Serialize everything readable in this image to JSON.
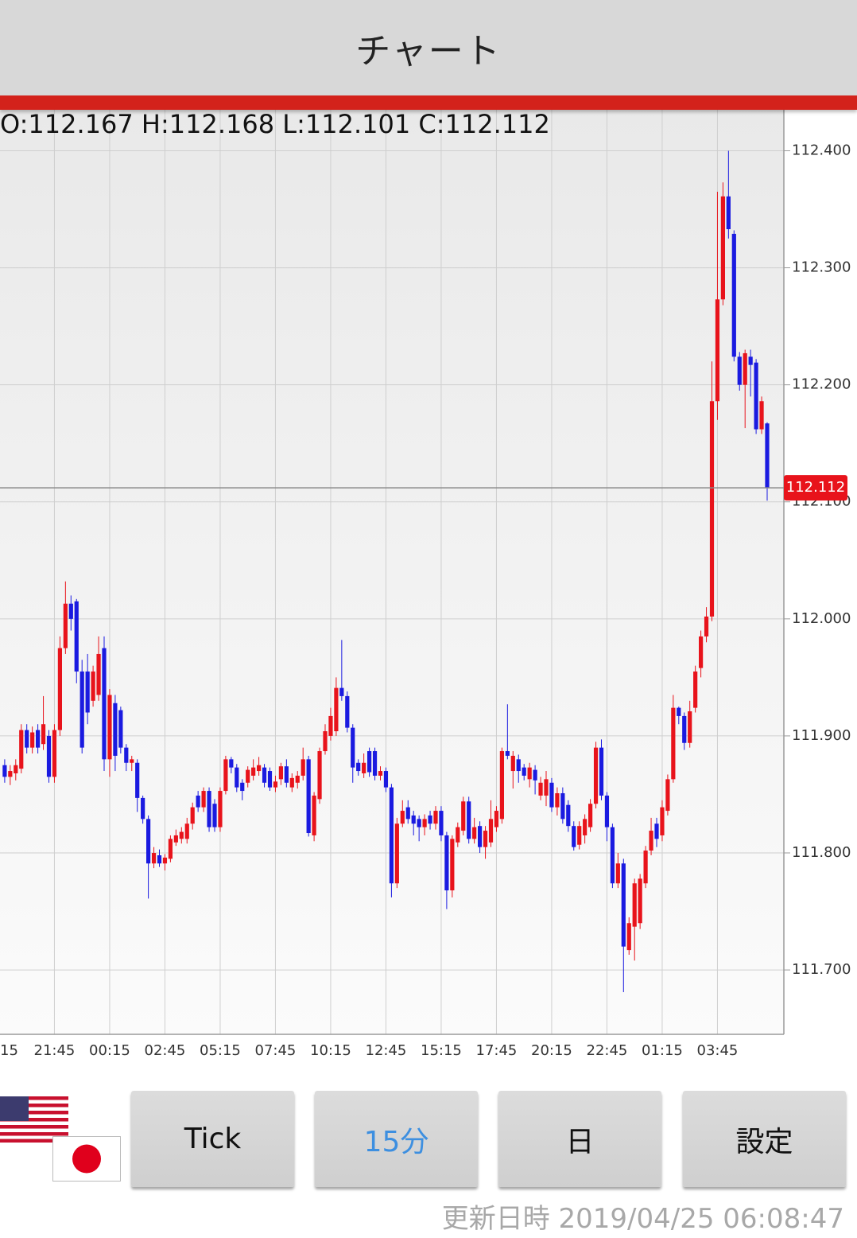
{
  "header": {
    "title": "チャート"
  },
  "chart_data": {
    "type": "candlestick",
    "ohlc_label": "O:112.167 H:112.168 L:112.101 C:112.112",
    "up_color": "#e8131b",
    "down_color": "#1a1ae0",
    "ylim": [
      111.645,
      112.435
    ],
    "yticks": [
      {
        "value": 111.7,
        "label": "111.700"
      },
      {
        "value": 111.8,
        "label": "111.800"
      },
      {
        "value": 111.9,
        "label": "111.900"
      },
      {
        "value": 112.0,
        "label": "112.000"
      },
      {
        "value": 112.1,
        "label": "112.100"
      },
      {
        "value": 112.2,
        "label": "112.200"
      },
      {
        "value": 112.3,
        "label": "112.300"
      },
      {
        "value": 112.4,
        "label": "112.400"
      }
    ],
    "grid": true,
    "categories": [
      "15",
      null,
      null,
      null,
      null,
      null,
      null,
      null,
      null,
      "21:45",
      null,
      null,
      null,
      null,
      null,
      null,
      null,
      null,
      null,
      "00:15",
      null,
      null,
      null,
      null,
      null,
      null,
      null,
      null,
      null,
      "02:45",
      null,
      null,
      null,
      null,
      null,
      null,
      null,
      null,
      null,
      "05:15",
      null,
      null,
      null,
      null,
      null,
      null,
      null,
      null,
      null,
      "07:45",
      null,
      null,
      null,
      null,
      null,
      null,
      null,
      null,
      null,
      "10:15",
      null,
      null,
      null,
      null,
      null,
      null,
      null,
      null,
      null,
      "12:45",
      null,
      null,
      null,
      null,
      null,
      null,
      null,
      null,
      null,
      "15:15",
      null,
      null,
      null,
      null,
      null,
      null,
      null,
      null,
      null,
      "17:45",
      null,
      null,
      null,
      null,
      null,
      null,
      null,
      null,
      null,
      "20:15",
      null,
      null,
      null,
      null,
      null,
      null,
      null,
      null,
      null,
      "22:45",
      null,
      null,
      null,
      null,
      null,
      null,
      null,
      null,
      null,
      "01:15",
      null,
      null,
      null,
      null,
      null,
      null,
      null,
      null,
      null,
      "03:45",
      null,
      null,
      null,
      null,
      null,
      null,
      null,
      null,
      null
    ],
    "open": [
      111.875,
      111.865,
      111.868,
      111.872,
      111.905,
      111.89,
      111.905,
      111.893,
      111.9,
      111.865,
      111.905,
      111.975,
      112.013,
      112.015,
      111.955,
      111.955,
      111.93,
      111.935,
      111.975,
      111.88,
      111.928,
      111.922,
      111.89,
      111.877,
      111.877,
      111.847,
      111.829,
      111.791,
      111.798,
      111.791,
      111.795,
      111.809,
      111.812,
      111.812,
      111.825,
      111.849,
      111.839,
      111.853,
      111.842,
      111.822,
      111.853,
      111.88,
      111.873,
      111.86,
      111.86,
      111.866,
      111.87,
      111.873,
      111.87,
      111.856,
      111.863,
      111.874,
      111.856,
      111.86,
      111.866,
      111.88,
      111.815,
      111.846,
      111.887,
      111.9,
      111.904,
      111.941,
      111.934,
      111.907,
      111.877,
      111.868,
      111.887,
      111.887,
      111.866,
      111.87,
      111.856,
      111.774,
      111.825,
      111.839,
      111.832,
      111.829,
      111.822,
      111.832,
      111.825,
      111.836,
      111.815,
      111.768,
      111.809,
      111.819,
      111.844,
      111.812,
      111.823,
      111.805,
      111.809,
      111.822,
      111.829,
      111.887,
      111.87,
      111.88,
      111.873,
      111.863,
      111.871,
      111.849,
      111.849,
      111.86,
      111.839,
      111.851,
      111.841,
      111.823,
      111.807,
      111.815,
      111.822,
      111.842,
      111.89,
      111.849,
      111.822,
      111.774,
      111.791,
      111.717,
      111.737,
      111.74,
      111.774,
      111.802,
      111.825,
      111.815,
      111.836,
      111.863,
      111.924,
      111.917,
      111.894,
      111.924,
      111.958,
      111.985,
      112.002,
      112.186,
      112.273,
      112.361,
      112.329,
      112.224,
      112.2,
      112.224,
      112.219,
      112.162,
      112.167
    ],
    "high": [
      111.88,
      111.875,
      111.88,
      111.91,
      111.91,
      111.908,
      111.91,
      111.934,
      111.905,
      111.91,
      111.985,
      112.032,
      112.02,
      112.017,
      111.965,
      111.97,
      111.96,
      111.985,
      111.985,
      111.94,
      111.935,
      111.925,
      111.893,
      111.883,
      111.88,
      111.849,
      111.832,
      111.805,
      111.803,
      111.799,
      111.815,
      111.82,
      111.822,
      111.83,
      111.843,
      111.853,
      111.856,
      111.856,
      111.846,
      111.856,
      111.883,
      111.882,
      111.876,
      111.863,
      111.874,
      111.88,
      111.882,
      111.876,
      111.873,
      111.866,
      111.877,
      111.88,
      111.868,
      111.87,
      111.89,
      111.883,
      111.852,
      111.89,
      111.91,
      111.924,
      111.95,
      111.982,
      111.938,
      111.91,
      111.88,
      111.885,
      111.89,
      111.89,
      111.874,
      111.873,
      111.859,
      111.83,
      111.845,
      111.845,
      111.836,
      111.832,
      111.833,
      111.836,
      111.84,
      111.84,
      111.818,
      111.815,
      111.826,
      111.848,
      111.848,
      111.83,
      111.827,
      111.823,
      111.845,
      111.84,
      111.89,
      111.927,
      111.887,
      111.884,
      111.876,
      111.877,
      111.875,
      111.865,
      111.87,
      111.864,
      111.856,
      111.856,
      111.845,
      111.827,
      111.827,
      111.833,
      111.846,
      111.895,
      111.897,
      111.852,
      111.825,
      111.8,
      111.795,
      111.745,
      111.778,
      111.782,
      111.806,
      111.83,
      111.83,
      111.845,
      111.867,
      111.935,
      111.925,
      111.92,
      111.93,
      111.96,
      111.99,
      112.01,
      112.22,
      112.365,
      112.373,
      112.4,
      112.332,
      112.228,
      112.23,
      112.23,
      112.222,
      112.19,
      112.168
    ],
    "low": [
      111.86,
      111.858,
      111.862,
      111.868,
      111.885,
      111.885,
      111.885,
      111.888,
      111.86,
      111.86,
      111.9,
      111.97,
      111.99,
      111.945,
      111.885,
      111.91,
      111.925,
      111.93,
      111.87,
      111.865,
      111.87,
      111.885,
      111.87,
      111.87,
      111.835,
      111.825,
      111.761,
      111.787,
      111.788,
      111.785,
      111.792,
      111.806,
      111.808,
      111.808,
      111.82,
      111.835,
      111.835,
      111.818,
      111.818,
      111.818,
      111.85,
      111.868,
      111.852,
      111.845,
      111.856,
      111.862,
      111.866,
      111.856,
      111.853,
      111.852,
      111.858,
      111.856,
      111.852,
      111.855,
      111.862,
      111.814,
      111.81,
      111.842,
      111.884,
      111.896,
      111.9,
      111.93,
      111.903,
      111.86,
      111.866,
      111.864,
      111.865,
      111.862,
      111.862,
      111.852,
      111.762,
      111.77,
      111.822,
      111.825,
      111.815,
      111.81,
      111.815,
      111.82,
      111.82,
      111.81,
      111.752,
      111.762,
      111.805,
      111.815,
      111.808,
      111.808,
      111.8,
      111.795,
      111.805,
      111.818,
      111.825,
      111.88,
      111.855,
      111.86,
      111.862,
      111.856,
      111.85,
      111.845,
      111.84,
      111.835,
      111.832,
      111.825,
      111.818,
      111.802,
      111.803,
      111.808,
      111.818,
      111.838,
      111.845,
      111.81,
      111.77,
      111.77,
      111.681,
      111.713,
      111.708,
      111.735,
      111.77,
      111.798,
      111.805,
      111.81,
      111.832,
      111.86,
      111.91,
      111.888,
      111.89,
      111.92,
      111.95,
      111.98,
      111.998,
      112.17,
      112.268,
      112.325,
      112.22,
      112.195,
      112.163,
      112.19,
      112.158,
      112.158,
      112.101
    ],
    "close": [
      111.865,
      111.87,
      111.875,
      111.905,
      111.89,
      111.903,
      111.89,
      111.91,
      111.865,
      111.905,
      111.975,
      112.013,
      112.0,
      111.955,
      111.89,
      111.92,
      111.955,
      111.97,
      111.88,
      111.935,
      111.883,
      111.89,
      111.877,
      111.88,
      111.847,
      111.829,
      111.791,
      111.8,
      111.791,
      111.796,
      111.812,
      111.815,
      111.818,
      111.825,
      111.839,
      111.839,
      111.853,
      111.822,
      111.822,
      111.853,
      111.88,
      111.873,
      111.856,
      111.853,
      111.871,
      111.873,
      111.875,
      111.86,
      111.856,
      111.861,
      111.874,
      111.86,
      111.864,
      111.866,
      111.88,
      111.817,
      111.849,
      111.887,
      111.904,
      111.917,
      111.941,
      111.934,
      111.907,
      111.873,
      111.87,
      111.877,
      111.869,
      111.866,
      111.87,
      111.856,
      111.774,
      111.825,
      111.836,
      111.829,
      111.825,
      111.822,
      111.829,
      111.825,
      111.836,
      111.815,
      111.768,
      111.812,
      111.822,
      111.844,
      111.812,
      111.822,
      111.805,
      111.819,
      111.829,
      111.836,
      111.887,
      111.883,
      111.883,
      111.87,
      111.866,
      111.873,
      111.862,
      111.86,
      111.863,
      111.839,
      111.851,
      111.829,
      111.823,
      111.805,
      111.823,
      111.829,
      111.842,
      111.89,
      111.849,
      111.822,
      111.774,
      111.791,
      111.72,
      111.74,
      111.774,
      111.778,
      111.802,
      111.819,
      111.812,
      111.839,
      111.863,
      111.924,
      111.917,
      111.894,
      111.921,
      111.955,
      111.985,
      112.002,
      112.186,
      112.273,
      112.361,
      112.333,
      112.224,
      112.2,
      112.227,
      112.217,
      112.162,
      112.186,
      112.112
    ]
  },
  "controls": {
    "buttons": [
      "Tick",
      "15分",
      "日",
      "設定"
    ],
    "selected_button": 1
  },
  "footer": {
    "updated": "更新日時 2019/04/25 06:08:47"
  }
}
